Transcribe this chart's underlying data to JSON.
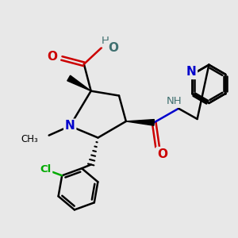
{
  "bg_color": "#e8e8e8",
  "atom_colors": {
    "C": "#000000",
    "N": "#0000cc",
    "O": "#cc0000",
    "H": "#407070",
    "Cl": "#00aa00"
  },
  "figsize": [
    3.0,
    3.0
  ],
  "dpi": 100
}
